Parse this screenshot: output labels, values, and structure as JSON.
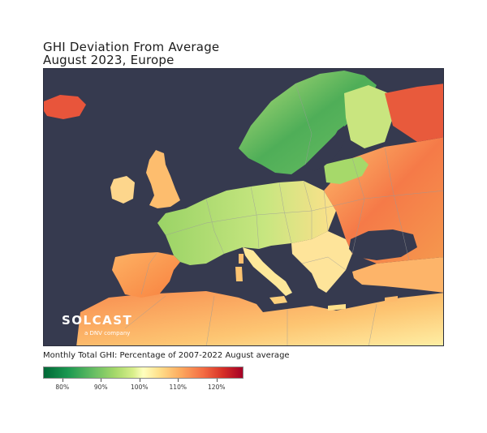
{
  "title": {
    "line1": "GHI Deviation From Average",
    "line2": "August 2023, Europe"
  },
  "logo": {
    "name": "SOLCAST",
    "tagline": "a DNV company"
  },
  "caption": "Monthly Total GHI: Percentage of 2007-2022 August average",
  "colorbar": {
    "ticks": [
      "80%",
      "90%",
      "100%",
      "110%",
      "120%"
    ],
    "range": [
      75,
      127
    ],
    "colors": [
      "#006837",
      "#1a9850",
      "#66bd63",
      "#a6d96a",
      "#d9ef8b",
      "#ffffbf",
      "#fee08b",
      "#fdae61",
      "#f46d43",
      "#d73027",
      "#a50026"
    ]
  },
  "colors": {
    "sea": "#363a4f",
    "border_lines": "#9a9a9a"
  }
}
